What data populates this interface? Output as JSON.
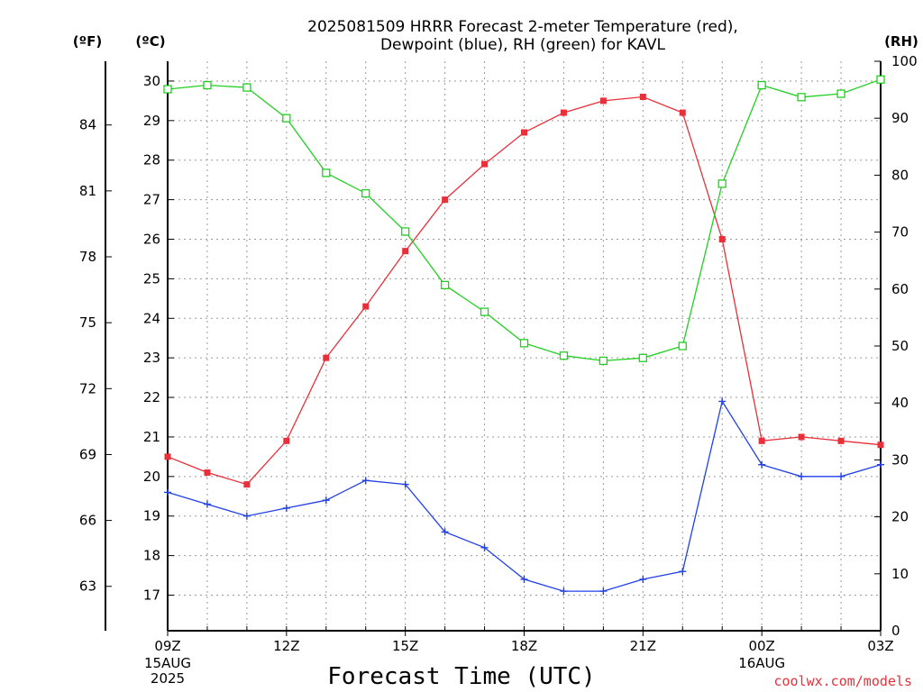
{
  "title_line1": "2025081509 HRRR Forecast 2-meter Temperature (red),",
  "title_line2": "Dewpoint (blue), RH (green) for KAVL",
  "unit_f": "(ºF)",
  "unit_c": "(ºC)",
  "unit_rh": "(RH)",
  "credit": "coolwx.com/models",
  "chart_data": {
    "type": "line",
    "title": "2025081509 HRRR Forecast 2-meter Temperature (red), Dewpoint (blue), RH (green) for KAVL",
    "xlabel": "Forecast Time (UTC)",
    "x_tick_labels": [
      "09Z",
      "12Z",
      "15Z",
      "18Z",
      "21Z",
      "00Z",
      "03Z"
    ],
    "x_tick_hours": [
      0,
      3,
      6,
      9,
      12,
      15,
      18
    ],
    "x_date_labels": [
      {
        "hour": 0,
        "lines": [
          "15AUG",
          "2025"
        ]
      },
      {
        "hour": 15,
        "lines": [
          "16AUG"
        ]
      }
    ],
    "x_hours": [
      0,
      1,
      2,
      3,
      4,
      5,
      6,
      7,
      8,
      9,
      10,
      11,
      12,
      13,
      14,
      15,
      16,
      17,
      18
    ],
    "xlim": [
      0,
      18
    ],
    "y_left_celsius": {
      "ylim": [
        16.1,
        30.5
      ],
      "ticks": [
        17,
        18,
        19,
        20,
        21,
        22,
        23,
        24,
        25,
        26,
        27,
        28,
        29,
        30
      ]
    },
    "y_left_fahrenheit": {
      "ticks": [
        63,
        66,
        69,
        72,
        75,
        78,
        81,
        84
      ]
    },
    "y_right_rh": {
      "ylim": [
        0,
        100
      ],
      "ticks": [
        0,
        10,
        20,
        30,
        40,
        50,
        60,
        70,
        80,
        90,
        100
      ]
    },
    "grid": true,
    "series": [
      {
        "name": "Temperature",
        "axis": "celsius",
        "color": "#e8303a",
        "marker": "filled-square",
        "values": [
          20.5,
          20.1,
          19.8,
          20.9,
          23.0,
          24.3,
          25.7,
          27.0,
          27.9,
          28.7,
          29.2,
          29.5,
          29.6,
          29.2,
          26.0,
          20.9,
          21.0,
          20.9,
          20.8
        ]
      },
      {
        "name": "Dewpoint",
        "axis": "celsius",
        "color": "#2040e8",
        "marker": "plus",
        "values": [
          19.6,
          19.3,
          19.0,
          19.2,
          19.4,
          19.9,
          19.8,
          18.6,
          18.2,
          17.4,
          17.1,
          17.1,
          17.4,
          17.6,
          21.9,
          20.3,
          20.0,
          20.0,
          20.3
        ]
      },
      {
        "name": "RH",
        "axis": "rh",
        "color": "#20d020",
        "marker": "open-square",
        "values": [
          95.1,
          95.8,
          95.4,
          90.0,
          80.4,
          76.8,
          70.1,
          60.7,
          56.0,
          50.5,
          48.3,
          47.4,
          47.9,
          50.0,
          78.5,
          95.8,
          93.7,
          94.3,
          96.8
        ]
      }
    ]
  }
}
